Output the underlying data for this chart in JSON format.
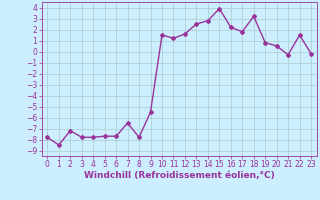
{
  "x": [
    0,
    1,
    2,
    3,
    4,
    5,
    6,
    7,
    8,
    9,
    10,
    11,
    12,
    13,
    14,
    15,
    16,
    17,
    18,
    19,
    20,
    21,
    22,
    23
  ],
  "y": [
    -7.8,
    -8.5,
    -7.2,
    -7.8,
    -7.8,
    -7.7,
    -7.7,
    -6.5,
    -7.8,
    -5.5,
    1.5,
    1.2,
    1.6,
    2.5,
    2.8,
    3.9,
    2.2,
    1.8,
    3.2,
    0.8,
    0.5,
    -0.3,
    1.5,
    -0.2
  ],
  "line_color": "#993399",
  "marker": "D",
  "marker_size": 2,
  "line_width": 1.0,
  "bg_color": "#cceeff",
  "grid_color": "#aacccc",
  "xlabel": "Windchill (Refroidissement éolien,°C)",
  "xlabel_fontsize": 6.5,
  "tick_fontsize": 5.5,
  "xlim": [
    -0.5,
    23.5
  ],
  "ylim": [
    -9.5,
    4.5
  ],
  "yticks": [
    -9,
    -8,
    -7,
    -6,
    -5,
    -4,
    -3,
    -2,
    -1,
    0,
    1,
    2,
    3,
    4
  ],
  "xticks": [
    0,
    1,
    2,
    3,
    4,
    5,
    6,
    7,
    8,
    9,
    10,
    11,
    12,
    13,
    14,
    15,
    16,
    17,
    18,
    19,
    20,
    21,
    22,
    23
  ]
}
